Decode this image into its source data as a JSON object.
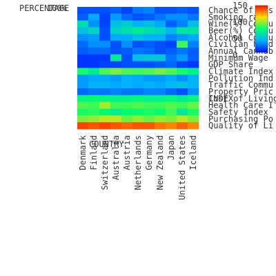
{
  "chart_data": {
    "type": "heatmap",
    "xlabel": "COUNTRY",
    "ylabel": "INDEX",
    "colorbar_label": "PERCENTAGE",
    "columns": [
      "Denmark",
      "Finland",
      "Switzerland",
      "Australia",
      "Austria",
      "Netherlands",
      "Germany",
      "New Zealand",
      "Japan",
      "United States",
      "Iceland"
    ],
    "rows": [
      "Chance of Ups",
      "Smoking rate",
      "Wine(%) Consu",
      "Beer(%) Consu",
      "Alcohol Consu",
      "Civilian hold",
      "Annual Cannab",
      "Minimum Wage",
      "GDP Share",
      "Climate Index",
      "Pollution Ind",
      "Traffic Commu",
      "Property Pric",
      "Cost of Living",
      "Health Care I",
      "Safety Index",
      "Purchasing Po",
      "Quality of Li"
    ],
    "values": [
      [
        10,
        10,
        10,
        12,
        8,
        16,
        18,
        10,
        10,
        12,
        10
      ],
      [
        12,
        24,
        8,
        22,
        14,
        10,
        12,
        16,
        20,
        20,
        16
      ],
      [
        40,
        20,
        8,
        30,
        34,
        26,
        30,
        24,
        12,
        18,
        30
      ],
      [
        30,
        36,
        10,
        36,
        40,
        44,
        40,
        36,
        28,
        42,
        42
      ],
      [
        20,
        22,
        10,
        24,
        24,
        30,
        26,
        26,
        18,
        22,
        24
      ],
      [
        14,
        20,
        20,
        10,
        20,
        10,
        12,
        10,
        8,
        56,
        18
      ],
      [
        12,
        14,
        14,
        10,
        12,
        16,
        14,
        10,
        12,
        16,
        12
      ],
      [
        6,
        6,
        6,
        44,
        10,
        30,
        32,
        32,
        16,
        22,
        12
      ],
      [
        6,
        6,
        8,
        8,
        10,
        10,
        10,
        12,
        14,
        8,
        6
      ],
      [
        52,
        44,
        58,
        62,
        58,
        56,
        58,
        62,
        58,
        52,
        46
      ],
      [
        22,
        24,
        24,
        22,
        26,
        24,
        22,
        22,
        24,
        20,
        26
      ],
      [
        22,
        26,
        26,
        24,
        26,
        24,
        26,
        24,
        28,
        30,
        26
      ],
      [
        14,
        16,
        16,
        18,
        16,
        16,
        18,
        18,
        14,
        10,
        20
      ],
      [
        48,
        50,
        48,
        46,
        46,
        48,
        46,
        46,
        48,
        44,
        48
      ],
      [
        58,
        56,
        66,
        56,
        56,
        58,
        56,
        56,
        58,
        56,
        60
      ],
      [
        52,
        54,
        50,
        44,
        50,
        50,
        52,
        50,
        56,
        42,
        52
      ],
      [
        62,
        64,
        68,
        68,
        60,
        64,
        60,
        64,
        62,
        68,
        62
      ],
      [
        94,
        92,
        94,
        92,
        90,
        92,
        92,
        88,
        86,
        90,
        86
      ]
    ],
    "colorscale": "rainbow",
    "colorbar_ticks": [
      "0",
      "50",
      "100",
      "150"
    ],
    "zmin": 0,
    "zmax": 100,
    "colorbar_top_label": "100%"
  }
}
